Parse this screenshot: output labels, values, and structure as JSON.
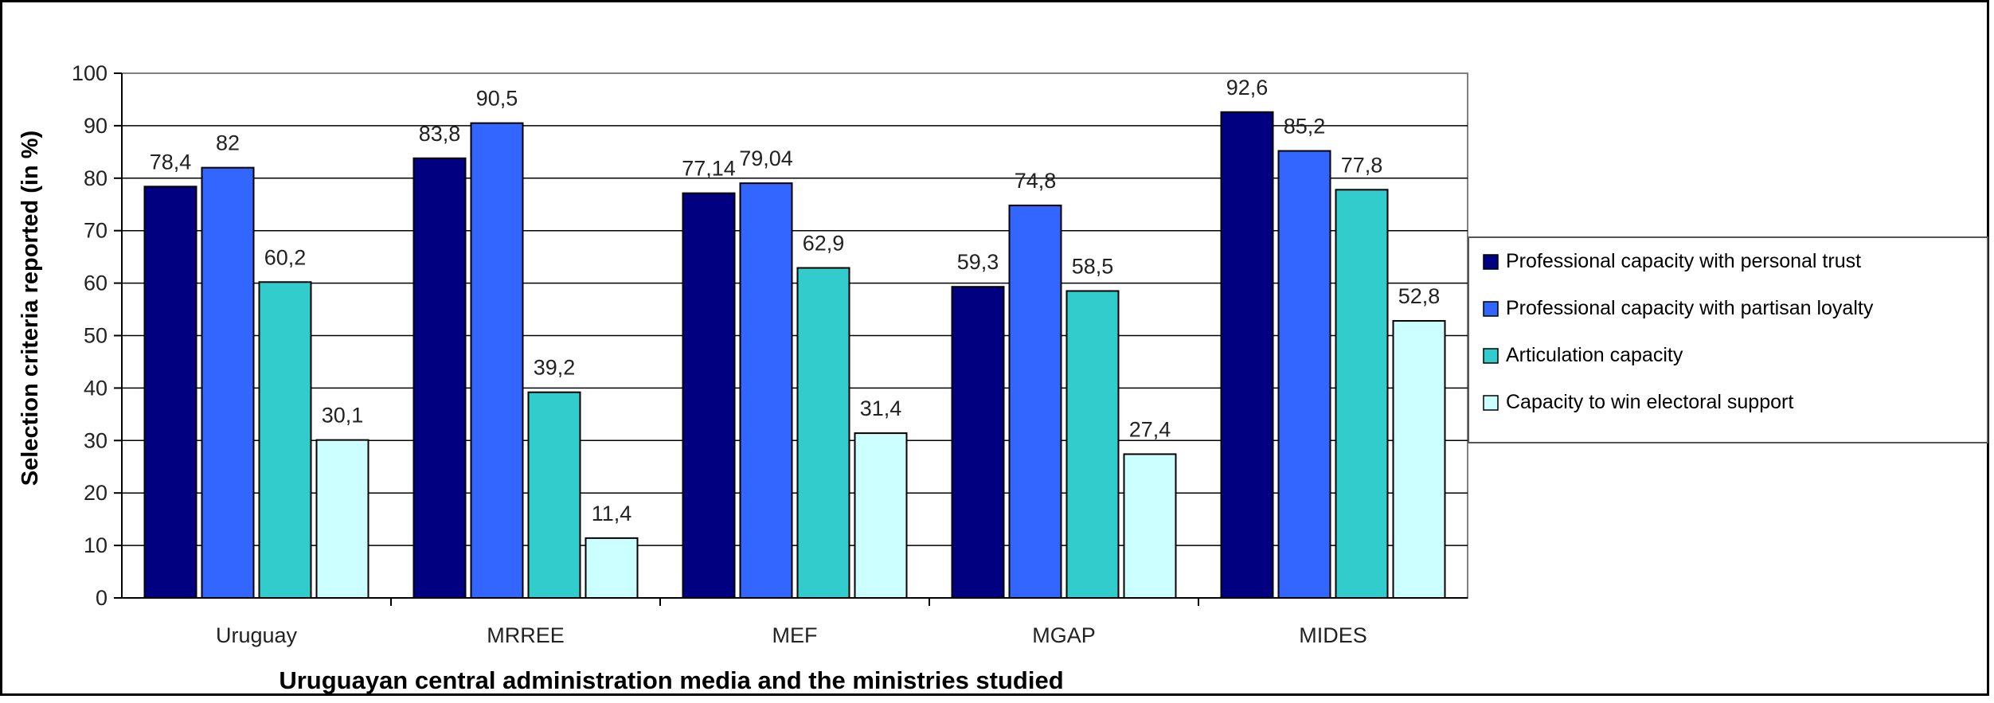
{
  "chart_data": {
    "type": "bar",
    "title": "",
    "xlabel": "Uruguayan central administration media and the ministries studied",
    "ylabel": "Selection criteria reported (in %)",
    "ylim": [
      0,
      100
    ],
    "yticks": [
      0,
      10,
      20,
      30,
      40,
      50,
      60,
      70,
      80,
      90,
      100
    ],
    "grid": true,
    "legend_position": "right",
    "categories": [
      "Uruguay",
      "MRREE",
      "MEF",
      "MGAP",
      "MIDES"
    ],
    "series": [
      {
        "name": "Professional capacity with personal trust",
        "color": "#000080",
        "values": [
          78.4,
          83.8,
          77.14,
          59.3,
          92.6
        ],
        "labels": [
          "78,4",
          "83,8",
          "77,14",
          "59,3",
          "92,6"
        ]
      },
      {
        "name": "Professional capacity with partisan loyalty",
        "color": "#3366ff",
        "values": [
          82,
          90.5,
          79.04,
          74.8,
          85.2
        ],
        "labels": [
          "82",
          "90,5",
          "79,04",
          "74,8",
          "85,2"
        ]
      },
      {
        "name": "Articulation capacity",
        "color": "#33cccc",
        "values": [
          60.2,
          39.2,
          62.9,
          58.5,
          77.8
        ],
        "labels": [
          "60,2",
          "39,2",
          "62,9",
          "58,5",
          "77,8"
        ]
      },
      {
        "name": "Capacity to win electoral support",
        "color": "#ccffff",
        "values": [
          30.1,
          11.4,
          31.4,
          27.4,
          52.8
        ],
        "labels": [
          "30,1",
          "11,4",
          "31,4",
          "27,4",
          "52,8"
        ]
      }
    ]
  }
}
